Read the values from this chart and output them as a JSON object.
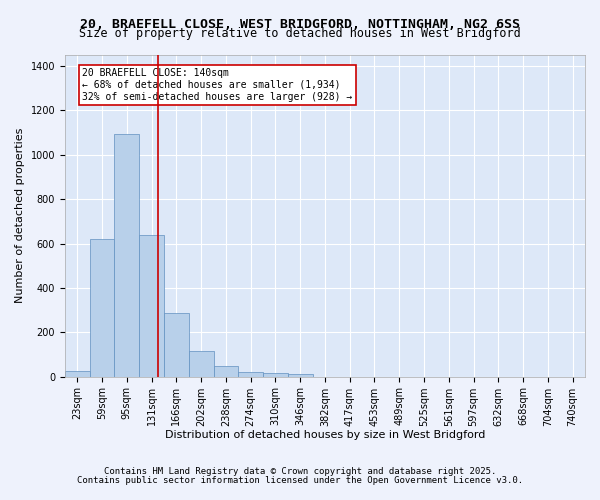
{
  "title1": "20, BRAEFELL CLOSE, WEST BRIDGFORD, NOTTINGHAM, NG2 6SS",
  "title2": "Size of property relative to detached houses in West Bridgford",
  "xlabel": "Distribution of detached houses by size in West Bridgford",
  "ylabel": "Number of detached properties",
  "bin_labels": [
    "23sqm",
    "59sqm",
    "95sqm",
    "131sqm",
    "166sqm",
    "202sqm",
    "238sqm",
    "274sqm",
    "310sqm",
    "346sqm",
    "382sqm",
    "417sqm",
    "453sqm",
    "489sqm",
    "525sqm",
    "561sqm",
    "597sqm",
    "632sqm",
    "668sqm",
    "704sqm",
    "740sqm"
  ],
  "bar_values": [
    25,
    620,
    1095,
    640,
    285,
    115,
    48,
    20,
    18,
    12,
    0,
    0,
    0,
    0,
    0,
    0,
    0,
    0,
    0,
    0,
    0
  ],
  "bar_color": "#b8d0ea",
  "bar_edge_color": "#6090c0",
  "background_color": "#dde8f8",
  "fig_background": "#eef2fc",
  "grid_color": "#ffffff",
  "red_line_x": 3.25,
  "annotation_text": "20 BRAEFELL CLOSE: 140sqm\n← 68% of detached houses are smaller (1,934)\n32% of semi-detached houses are larger (928) →",
  "annotation_box_color": "#ffffff",
  "annotation_box_edge": "#cc0000",
  "red_line_color": "#cc0000",
  "ylim": [
    0,
    1450
  ],
  "yticks": [
    0,
    200,
    400,
    600,
    800,
    1000,
    1200,
    1400
  ],
  "footer1": "Contains HM Land Registry data © Crown copyright and database right 2025.",
  "footer2": "Contains public sector information licensed under the Open Government Licence v3.0.",
  "title1_fontsize": 9.5,
  "title2_fontsize": 8.5,
  "xlabel_fontsize": 8,
  "ylabel_fontsize": 8,
  "tick_fontsize": 7,
  "annotation_fontsize": 7,
  "footer_fontsize": 6.5
}
